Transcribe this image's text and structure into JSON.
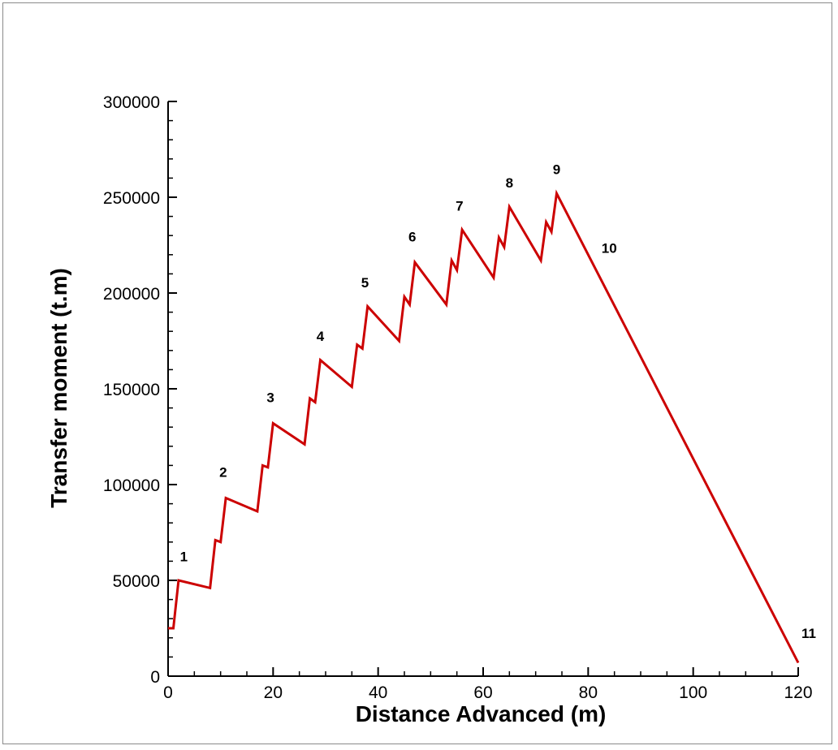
{
  "chart_data": {
    "type": "line",
    "title": "",
    "xlabel": "Distance Advanced (m)",
    "ylabel": "Transfer moment (t.m)",
    "xlim": [
      0,
      120
    ],
    "ylim": [
      0,
      300000
    ],
    "x_ticks": [
      0,
      20,
      40,
      60,
      80,
      100,
      120
    ],
    "x_tick_labels": [
      "0",
      "20",
      "40",
      "60",
      "80",
      "100",
      "120"
    ],
    "y_ticks": [
      0,
      50000,
      100000,
      150000,
      200000,
      250000,
      300000
    ],
    "y_tick_labels": [
      "0",
      "50000",
      "100000",
      "150000",
      "200000",
      "250000",
      "300000"
    ],
    "grid": false,
    "line_color": "#cc0000",
    "series": [
      {
        "x": [
          0,
          1,
          2,
          8,
          9,
          10,
          11,
          17,
          18,
          19,
          20,
          26,
          27,
          28,
          29,
          35,
          36,
          37,
          38,
          44,
          45,
          46,
          47,
          53,
          54,
          55,
          56,
          62,
          63,
          64,
          65,
          71,
          72,
          73,
          74,
          120
        ],
        "y": [
          25000,
          25000,
          50000,
          46000,
          71000,
          70000,
          93000,
          86000,
          110000,
          109000,
          132000,
          121000,
          145000,
          143000,
          165000,
          151000,
          173000,
          171000,
          193000,
          175000,
          198000,
          194000,
          216000,
          194000,
          217000,
          212000,
          233000,
          208000,
          229000,
          224000,
          245000,
          217000,
          237000,
          232000,
          252000,
          7000
        ]
      }
    ],
    "annotations": [
      {
        "text": "1",
        "x": 3,
        "y": 60000
      },
      {
        "text": "2",
        "x": 10.5,
        "y": 104000
      },
      {
        "text": "3",
        "x": 19.5,
        "y": 143000
      },
      {
        "text": "4",
        "x": 29,
        "y": 175000
      },
      {
        "text": "5",
        "x": 37.5,
        "y": 203000
      },
      {
        "text": "6",
        "x": 46.5,
        "y": 227000
      },
      {
        "text": "7",
        "x": 55.5,
        "y": 243000
      },
      {
        "text": "8",
        "x": 65,
        "y": 255000
      },
      {
        "text": "9",
        "x": 74,
        "y": 262000
      },
      {
        "text": "10",
        "x": 84,
        "y": 221000
      },
      {
        "text": "11",
        "x": 122,
        "y": 20000
      }
    ]
  }
}
